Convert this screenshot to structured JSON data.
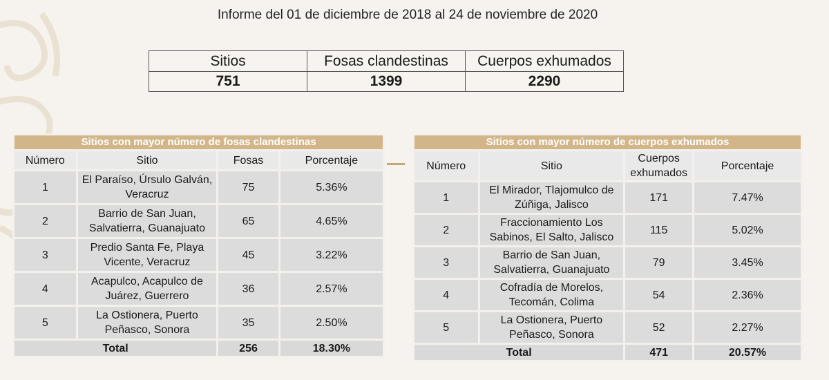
{
  "report_title": "Informe del 01 de diciembre de 2018 al 24 de noviembre de 2020",
  "summary": {
    "headers": [
      "Sitios",
      "Fosas clandestinas",
      "Cuerpos exhumados"
    ],
    "values": [
      "751",
      "1399",
      "2290"
    ]
  },
  "fosas_table": {
    "title": "Sitios con mayor número de fosas clandestinas",
    "headers": [
      "Número",
      "Sitio",
      "Fosas",
      "Porcentaje"
    ],
    "rows": [
      {
        "num": "1",
        "sitio": "El Paraíso, Úrsulo Galván, Veracruz",
        "valor": "75",
        "pct": "5.36%"
      },
      {
        "num": "2",
        "sitio": "Barrio de San Juan, Salvatierra, Guanajuato",
        "valor": "65",
        "pct": "4.65%"
      },
      {
        "num": "3",
        "sitio": "Predio Santa Fe, Playa Vicente, Veracruz",
        "valor": "45",
        "pct": "3.22%"
      },
      {
        "num": "4",
        "sitio": "Acapulco, Acapulco de Juárez, Guerrero",
        "valor": "36",
        "pct": "2.57%"
      },
      {
        "num": "5",
        "sitio": "La Ostionera, Puerto Peñasco, Sonora",
        "valor": "35",
        "pct": "2.50%"
      }
    ],
    "total": {
      "label": "Total",
      "valor": "256",
      "pct": "18.30%"
    }
  },
  "cuerpos_table": {
    "title": "Sitios con mayor número de cuerpos exhumados",
    "headers": [
      "Número",
      "Sitio",
      "Cuerpos exhumados",
      "Porcentaje"
    ],
    "rows": [
      {
        "num": "1",
        "sitio": "El Mirador, Tlajomulco de Zúñiga, Jalisco",
        "valor": "171",
        "pct": "7.47%"
      },
      {
        "num": "2",
        "sitio": "Fraccionamiento Los Sabinos, El Salto, Jalisco",
        "valor": "115",
        "pct": "5.02%"
      },
      {
        "num": "3",
        "sitio": "Barrio de San Juan, Salvatierra, Guanajuato",
        "valor": "79",
        "pct": "3.45%"
      },
      {
        "num": "4",
        "sitio": "Cofradía de Morelos, Tecomán, Colima",
        "valor": "54",
        "pct": "2.36%"
      },
      {
        "num": "5",
        "sitio": "La Ostionera, Puerto Peñasco, Sonora",
        "valor": "52",
        "pct": "2.27%"
      }
    ],
    "total": {
      "label": "Total",
      "valor": "471",
      "pct": "20.57%"
    }
  },
  "colors": {
    "band": "#d2b68a",
    "cell": "#dcdcdc",
    "background": "#f6f3ee"
  }
}
